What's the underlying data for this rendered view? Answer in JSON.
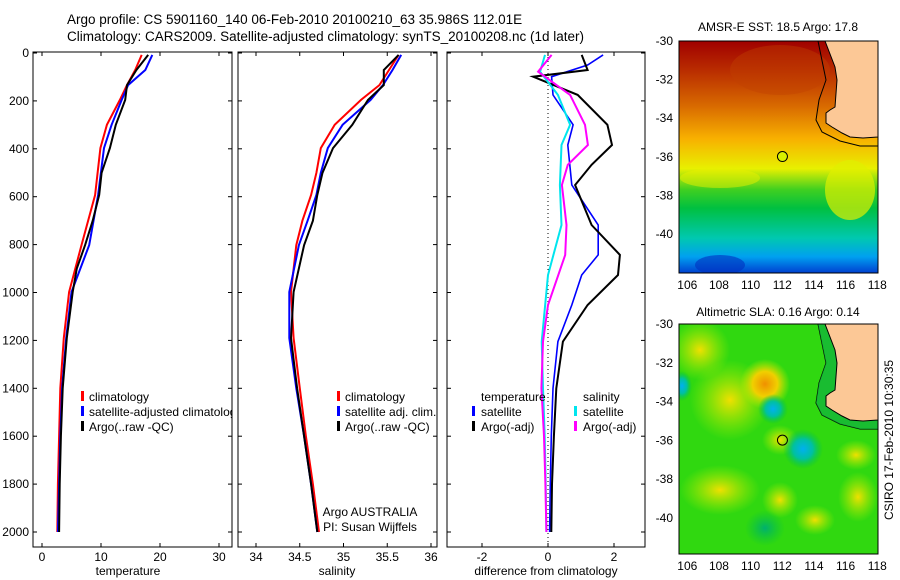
{
  "header": {
    "line1": "Argo profile: CS 5901160_140 06-Feb-2010 20100210_63 35.986S 112.01E",
    "line2": "Climatology: CARS2009. Satellite-adjusted climatology: synTS_20100208.nc (1d later)"
  },
  "footer_stamp": "CSIRO 17-Feb-2010 10:30:35",
  "colors": {
    "climatology": "#ff0000",
    "satellite": "#0000ff",
    "argo": "#000000",
    "sal_satellite": "#00e5ee",
    "sal_argo": "#ff00ff",
    "land": "#fcc896"
  },
  "chart_data": [
    {
      "type": "line",
      "xlabel": "temperature",
      "ylabel": "",
      "xlim": [
        -1.5,
        32
      ],
      "ylim": [
        2060,
        -5
      ],
      "xticks": [
        "0",
        "10",
        "20",
        "30"
      ],
      "xtick_values": [
        0,
        10,
        20,
        30
      ],
      "yticks": [
        "0",
        "200",
        "400",
        "600",
        "800",
        "1000",
        "1200",
        "1400",
        "1600",
        "1800",
        "2000"
      ],
      "ytick_values": [
        0,
        200,
        400,
        600,
        800,
        1000,
        1200,
        1400,
        1600,
        1800,
        2000
      ],
      "legend": [
        "climatology",
        "satellite-adjusted climatology",
        "Argo(..raw -QC)"
      ],
      "series": [
        {
          "name": "climatology",
          "color": "#ff0000",
          "depth": [
            8,
            71,
            134,
            196,
            300,
            397,
            593,
            802,
            998,
            1190,
            1400,
            1600,
            1800,
            2000
          ],
          "values": [
            16.9,
            15.8,
            14.4,
            13.2,
            11.0,
            9.9,
            9.0,
            6.7,
            4.6,
            3.7,
            3.1,
            2.9,
            2.7,
            2.6
          ]
        },
        {
          "name": "satellite-adjusted climatology",
          "color": "#0000ff",
          "depth": [
            8,
            71,
            134,
            196,
            300,
            397,
            593,
            802,
            998,
            1190,
            1400,
            1600,
            1800,
            2000
          ],
          "values": [
            18.7,
            17.5,
            14.6,
            13.5,
            11.8,
            10.5,
            9.5,
            8.0,
            5.0,
            4.1,
            3.4,
            3.1,
            2.9,
            2.7
          ]
        },
        {
          "name": "Argo(..raw -QC)",
          "color": "#000000",
          "depth": [
            8,
            71,
            134,
            196,
            300,
            397,
            500,
            593,
            700,
            802,
            900,
            998,
            1190,
            1400,
            1600,
            1800,
            2000
          ],
          "values": [
            18.0,
            16.0,
            14.4,
            14.1,
            12.5,
            11.5,
            10.1,
            9.7,
            8.6,
            7.3,
            5.9,
            5.2,
            4.2,
            3.5,
            3.2,
            3.0,
            2.9
          ]
        }
      ]
    },
    {
      "type": "line",
      "xlabel": "salinity",
      "xlim": [
        33.8,
        36.07
      ],
      "ylim": [
        2060,
        -5
      ],
      "xticks": [
        "34",
        "34.5",
        "35",
        "35.5",
        "36"
      ],
      "xtick_values": [
        34,
        34.5,
        35,
        35.5,
        36
      ],
      "legend": [
        "climatology",
        "satellite adj. clim.",
        "Argo(..raw -QC)"
      ],
      "annotations": [
        "Argo AUSTRALIA",
        "PI: Susan Wijffels"
      ],
      "series": [
        {
          "name": "climatology",
          "color": "#ff0000",
          "depth": [
            8,
            71,
            134,
            196,
            300,
            397,
            500,
            593,
            700,
            802,
            998,
            1190,
            1400,
            1600,
            1800,
            2000
          ],
          "values": [
            35.63,
            35.52,
            35.41,
            35.2,
            34.9,
            34.74,
            34.69,
            34.63,
            34.53,
            34.46,
            34.4,
            34.43,
            34.5,
            34.57,
            34.65,
            34.72
          ]
        },
        {
          "name": "satellite adj. clim.",
          "color": "#0000ff",
          "depth": [
            8,
            71,
            134,
            196,
            300,
            397,
            500,
            593,
            700,
            802,
            998,
            1190,
            1400,
            1600,
            1800,
            2000
          ],
          "values": [
            35.66,
            35.56,
            35.45,
            35.31,
            34.99,
            34.82,
            34.74,
            34.69,
            34.59,
            34.49,
            34.38,
            34.38,
            34.46,
            34.55,
            34.63,
            34.7
          ]
        },
        {
          "name": "Argo(..raw -QC)",
          "color": "#000000",
          "depth": [
            8,
            71,
            134,
            196,
            300,
            397,
            500,
            593,
            700,
            802,
            998,
            1190,
            1400,
            1600,
            1800,
            2000
          ],
          "values": [
            35.63,
            35.46,
            35.46,
            35.28,
            35.1,
            34.88,
            34.76,
            34.7,
            34.65,
            34.55,
            34.43,
            34.4,
            34.47,
            34.55,
            34.63,
            34.7
          ]
        }
      ]
    },
    {
      "type": "line",
      "xlabel": "difference from climatology",
      "xlim": [
        -3.06,
        2.94
      ],
      "ylim": [
        2060,
        -5
      ],
      "xticks": [
        "-2",
        "0",
        "2"
      ],
      "xtick_values": [
        -2,
        0,
        2
      ],
      "legend_groups": [
        {
          "title": "temperature",
          "items": [
            "satellite",
            "Argo(-adj)"
          ]
        },
        {
          "title": "salinity",
          "items": [
            "satellite",
            "Argo(-adj)"
          ]
        }
      ],
      "series": [
        {
          "name": "temperature satellite",
          "color": "#0000ff",
          "depth": [
            8,
            50,
            99,
            175,
            300,
            384,
            551,
            718,
            843,
            927,
            1052,
            1205,
            1400,
            1600,
            1800,
            2000
          ],
          "values": [
            1.67,
            1.2,
            0.11,
            0.15,
            0.76,
            0.6,
            0.72,
            1.52,
            1.52,
            1.02,
            0.72,
            0.3,
            0.15,
            0.1,
            0.07,
            0.05
          ]
        },
        {
          "name": "temperature Argo(-adj)",
          "color": "#000000",
          "depth": [
            8,
            71,
            99,
            175,
            300,
            384,
            467,
            551,
            718,
            843,
            927,
            1052,
            1205,
            1400,
            1600,
            1800,
            2000
          ],
          "values": [
            1.02,
            1.2,
            -0.45,
            0.9,
            1.8,
            1.94,
            1.32,
            0.82,
            1.32,
            2.18,
            2.12,
            1.2,
            0.45,
            0.25,
            0.18,
            0.12,
            0.1
          ]
        },
        {
          "name": "salinity satellite",
          "color": "#00e5ee",
          "depth": [
            8,
            78,
            175,
            300,
            384,
            551,
            718,
            927,
            1205,
            1400,
            1600,
            1800,
            2000
          ],
          "values": [
            -0.09,
            -0.24,
            0.3,
            0.67,
            0.41,
            0.36,
            0.41,
            0.0,
            -0.19,
            -0.15,
            -0.1,
            -0.07,
            -0.05
          ]
        },
        {
          "name": "salinity Argo(-adj)",
          "color": "#ff00ff",
          "depth": [
            8,
            78,
            175,
            300,
            384,
            467,
            551,
            718,
            843,
            1052,
            1205,
            1400,
            1600,
            1800,
            2000
          ],
          "values": [
            0.11,
            -0.3,
            0.67,
            1.12,
            1.21,
            0.6,
            0.42,
            0.56,
            0.52,
            0.0,
            -0.15,
            -0.2,
            -0.12,
            -0.08,
            -0.05
          ]
        }
      ]
    },
    {
      "type": "heatmap",
      "title": "AMSR-E SST: 18.5 Argo: 17.8",
      "xticks": [
        "106",
        "108",
        "110",
        "112",
        "114",
        "116",
        "118"
      ],
      "yticks": [
        "-30",
        "-32",
        "-34",
        "-36",
        "-38",
        "-40"
      ],
      "xtick_values": [
        106,
        108,
        110,
        112,
        114,
        116,
        118
      ],
      "ytick_values": [
        -30,
        -32,
        -34,
        -36,
        -38,
        -40
      ],
      "marker": {
        "lon": 112.01,
        "lat": -35.986
      }
    },
    {
      "type": "heatmap",
      "title": "Altimetric SLA: 0.16 Argo: 0.14",
      "xticks": [
        "106",
        "108",
        "110",
        "112",
        "114",
        "116",
        "118"
      ],
      "yticks": [
        "-30",
        "-32",
        "-34",
        "-36",
        "-38",
        "-40"
      ],
      "xtick_values": [
        106,
        108,
        110,
        112,
        114,
        116,
        118
      ],
      "ytick_values": [
        -30,
        -32,
        -34,
        -36,
        -38,
        -40
      ],
      "marker": {
        "lon": 112.01,
        "lat": -35.986
      }
    }
  ]
}
